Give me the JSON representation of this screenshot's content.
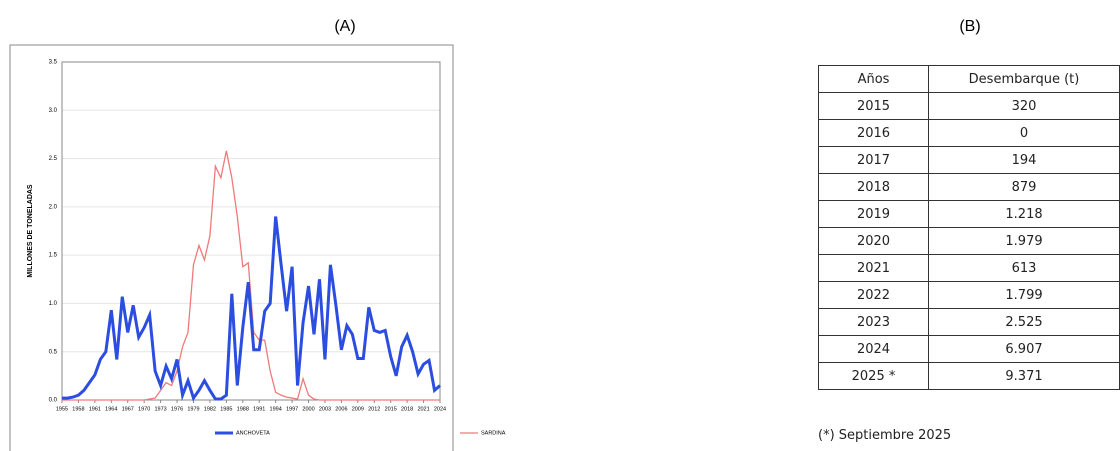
{
  "panel_labels": [
    "(A)",
    "(B)"
  ],
  "chart_data": {
    "type": "line",
    "y_label": "MILLONES DE TONELADAS",
    "x": [
      1955,
      1956,
      1957,
      1958,
      1959,
      1960,
      1961,
      1962,
      1963,
      1964,
      1965,
      1966,
      1967,
      1968,
      1969,
      1970,
      1971,
      1972,
      1973,
      1974,
      1975,
      1976,
      1977,
      1978,
      1979,
      1980,
      1981,
      1982,
      1983,
      1984,
      1985,
      1986,
      1987,
      1988,
      1989,
      1990,
      1991,
      1992,
      1993,
      1994,
      1995,
      1996,
      1997,
      1998,
      1999,
      2000,
      2001,
      2002,
      2003,
      2004,
      2005,
      2006,
      2007,
      2008,
      2009,
      2010,
      2011,
      2012,
      2013,
      2014,
      2015,
      2016,
      2017,
      2018,
      2019,
      2020,
      2021,
      2022,
      2023,
      2024
    ],
    "xlim": [
      1955,
      2024
    ],
    "xticks": [
      1955,
      1958,
      1961,
      1964,
      1967,
      1970,
      1973,
      1976,
      1979,
      1982,
      1985,
      1988,
      1991,
      1994,
      1997,
      2000,
      2003,
      2006,
      2009,
      2012,
      2015,
      2018,
      2021,
      2024
    ],
    "ylim": [
      0,
      3.5
    ],
    "yticks": [
      {
        "value": 0,
        "label": "0.0"
      },
      0.5,
      {
        "value": 1,
        "label": "1.0"
      },
      1.5,
      {
        "value": 2,
        "label": "2.0"
      },
      2.5,
      {
        "value": 3,
        "label": "3.0"
      },
      3.5
    ],
    "series": [
      {
        "name": "ANCHOVETA",
        "color": "#2b4de0",
        "values": [
          0.02,
          0.02,
          0.03,
          0.05,
          0.1,
          0.18,
          0.26,
          0.42,
          0.5,
          0.93,
          0.42,
          1.07,
          0.7,
          0.98,
          0.65,
          0.75,
          0.88,
          0.3,
          0.15,
          0.35,
          0.22,
          0.42,
          0.05,
          0.2,
          0.02,
          0.1,
          0.2,
          0.1,
          0.01,
          0.01,
          0.05,
          1.1,
          0.15,
          0.75,
          1.22,
          0.52,
          0.52,
          0.92,
          1.0,
          1.9,
          1.4,
          0.92,
          1.38,
          0.15,
          0.8,
          1.18,
          0.68,
          1.25,
          0.42,
          1.4,
          0.98,
          0.52,
          0.77,
          0.68,
          0.43,
          0.43,
          0.96,
          0.72,
          0.7,
          0.72,
          0.45,
          0.25,
          0.55,
          0.67,
          0.5,
          0.27,
          0.37,
          0.41,
          0.1,
          0.15
        ]
      },
      {
        "name": "SARDINA",
        "color": "#f07a7a",
        "values": [
          0,
          0,
          0,
          0,
          0,
          0,
          0,
          0,
          0,
          0,
          0,
          0,
          0,
          0,
          0,
          0,
          0.01,
          0.02,
          0.1,
          0.18,
          0.15,
          0.3,
          0.55,
          0.7,
          1.4,
          1.6,
          1.45,
          1.7,
          2.42,
          2.3,
          2.58,
          2.3,
          1.9,
          1.38,
          1.42,
          0.7,
          0.62,
          0.62,
          0.3,
          0.08,
          0.05,
          0.03,
          0.02,
          0.01,
          0.22,
          0.05,
          0.01,
          0,
          0,
          0,
          0,
          0,
          0,
          0,
          0,
          0,
          0,
          0,
          0,
          0,
          0,
          0,
          0,
          0,
          0,
          0,
          0,
          0,
          0,
          0
        ]
      }
    ]
  },
  "table": {
    "header": [
      "Años",
      "Desembarque (t)"
    ],
    "rows": [
      [
        "2015",
        "320"
      ],
      [
        "2016",
        "0"
      ],
      [
        "2017",
        "194"
      ],
      [
        "2018",
        "879"
      ],
      [
        "2019",
        "1.218"
      ],
      [
        "2020",
        "1.979"
      ],
      [
        "2021",
        "613"
      ],
      [
        "2022",
        "1.799"
      ],
      [
        "2023",
        "2.525"
      ],
      [
        "2024",
        "6.907"
      ],
      [
        "2025 *",
        "9.371"
      ]
    ],
    "footnote": "(*) Septiembre 2025"
  }
}
